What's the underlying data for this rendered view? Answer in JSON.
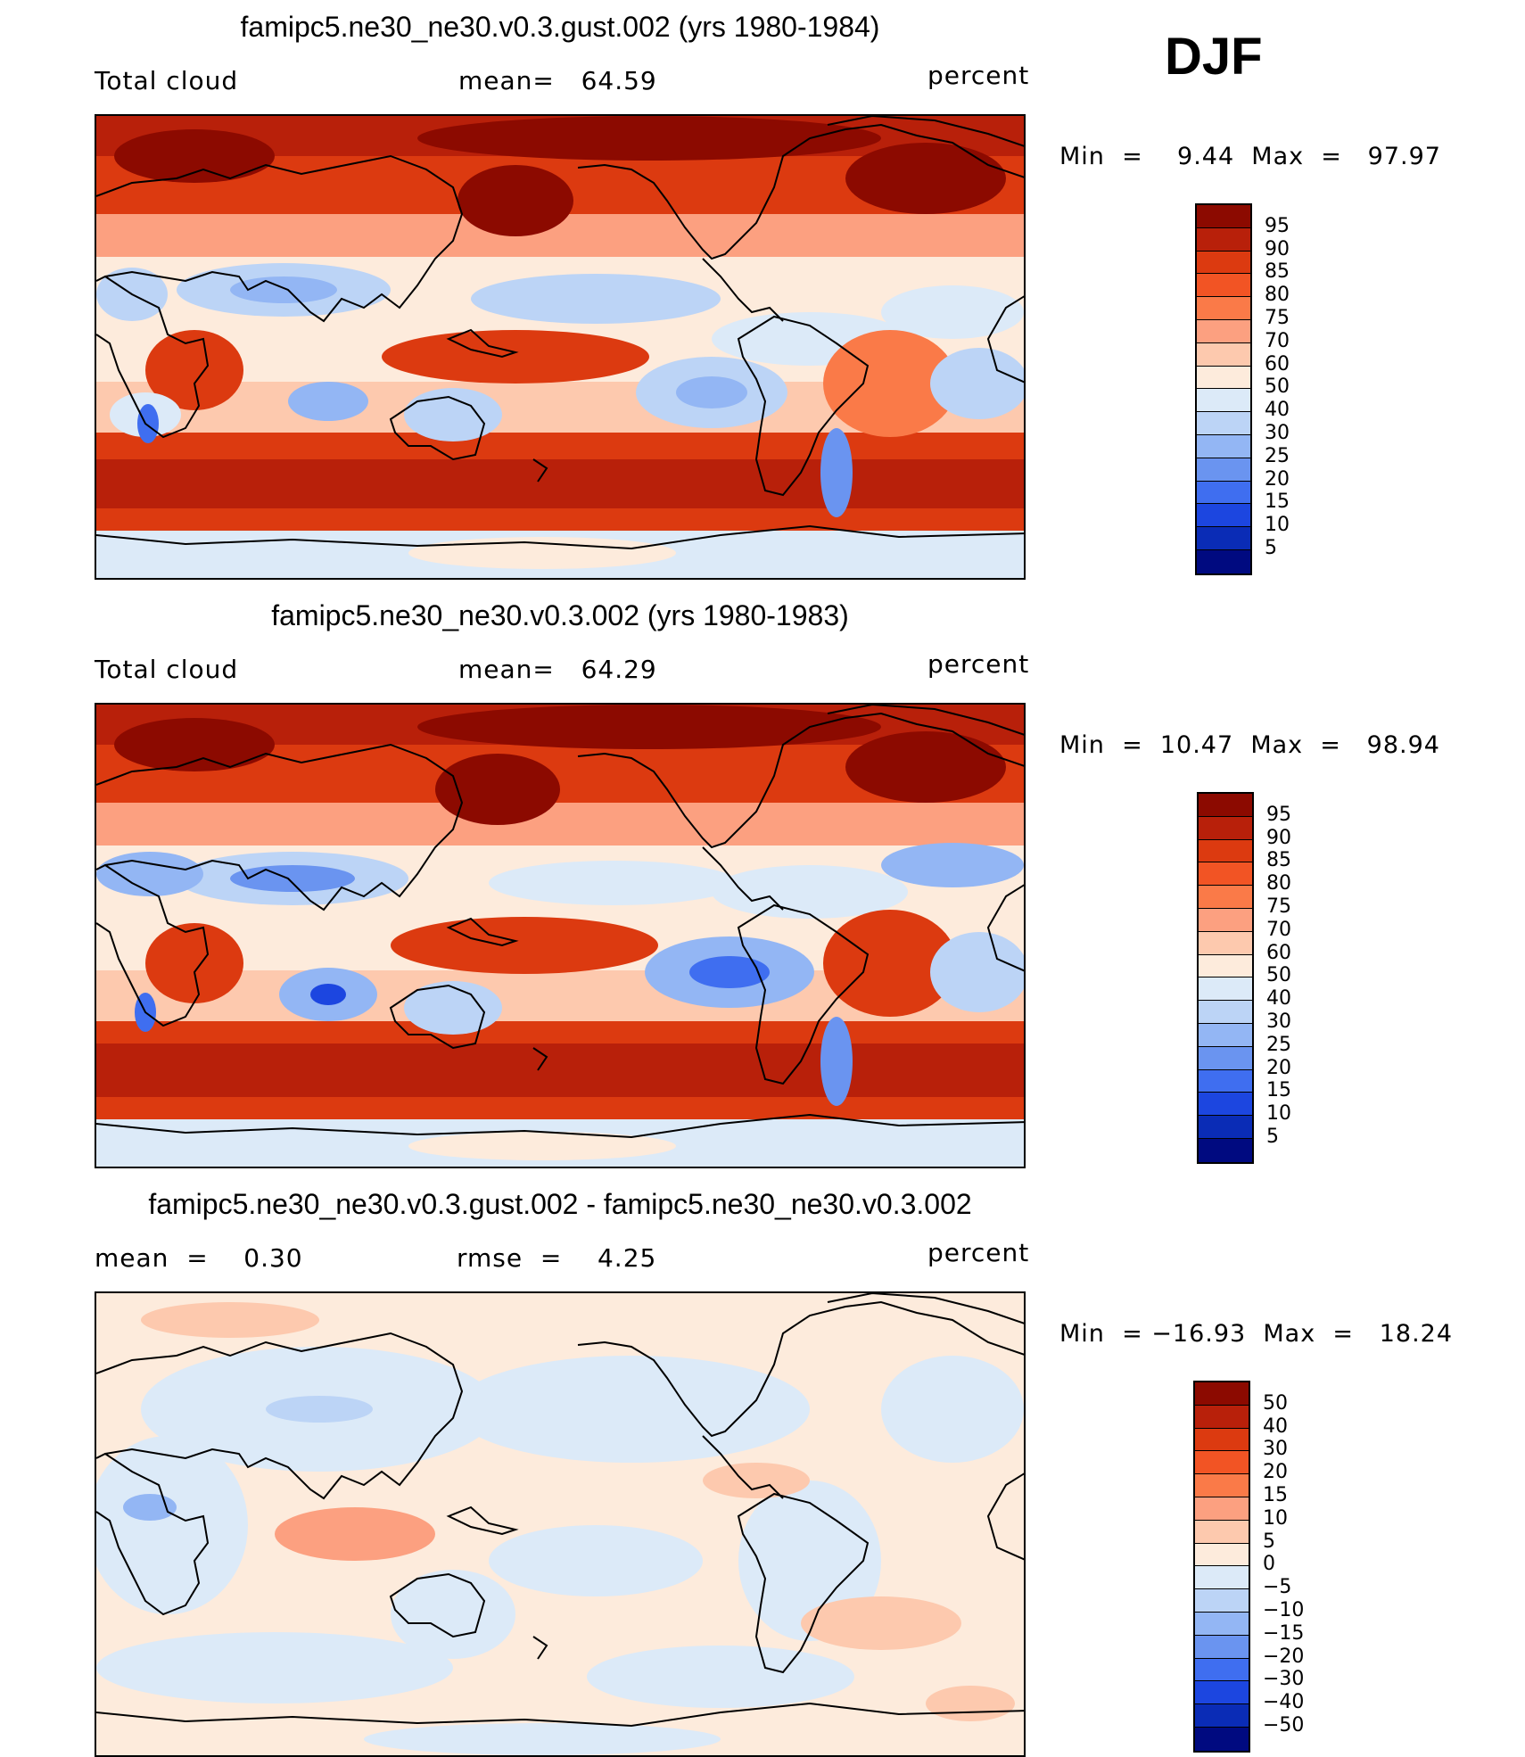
{
  "season": "DJF",
  "panels": [
    {
      "id": "gust",
      "title": "famipc5.ne30_ne30.v0.3.gust.002 (yrs 1980-1984)",
      "left_label": "Total cloud",
      "center_label": "mean=   64.59",
      "right_label": "percent",
      "minmax": "Min  =    9.44  Max  =   97.97"
    },
    {
      "id": "control",
      "title": "famipc5.ne30_ne30.v0.3.002 (yrs 1980-1983)",
      "left_label": "Total cloud",
      "center_label": "mean=   64.29",
      "right_label": "percent",
      "minmax": "Min  =  10.47  Max  =   98.94"
    },
    {
      "id": "diff",
      "title": "famipc5.ne30_ne30.v0.3.gust.002 - famipc5.ne30_ne30.v0.3.002",
      "left_label": "mean  =    0.30",
      "center_label": "rmse  =    4.25",
      "right_label": "percent",
      "minmax": "Min  = −16.93  Max  =   18.24"
    }
  ],
  "colorbars": {
    "absolute": {
      "colors": [
        "#8c0a00",
        "#b8200a",
        "#dc3a10",
        "#f25424",
        "#fa7a48",
        "#fca080",
        "#fdc9ae",
        "#fdebdc",
        "#dceaf8",
        "#bcd4f6",
        "#93b6f4",
        "#6a94f0",
        "#3f6ef0",
        "#1c46e0",
        "#0a2cb6",
        "#000a80"
      ],
      "labels": [
        "95",
        "90",
        "85",
        "80",
        "75",
        "70",
        "60",
        "50",
        "40",
        "30",
        "25",
        "20",
        "15",
        "10",
        "5"
      ]
    },
    "difference": {
      "colors": [
        "#8c0a00",
        "#b8200a",
        "#dc3a10",
        "#f25424",
        "#fa7a48",
        "#fca080",
        "#fdc9ae",
        "#fdebdc",
        "#dceaf8",
        "#bcd4f6",
        "#93b6f4",
        "#6a94f0",
        "#3f6ef0",
        "#1c46e0",
        "#0a2cb6",
        "#000a80"
      ],
      "labels": [
        "50",
        "40",
        "30",
        "20",
        "15",
        "10",
        "5",
        "0",
        "−5",
        "−10",
        "−15",
        "−20",
        "−30",
        "−40",
        "−50"
      ]
    }
  }
}
